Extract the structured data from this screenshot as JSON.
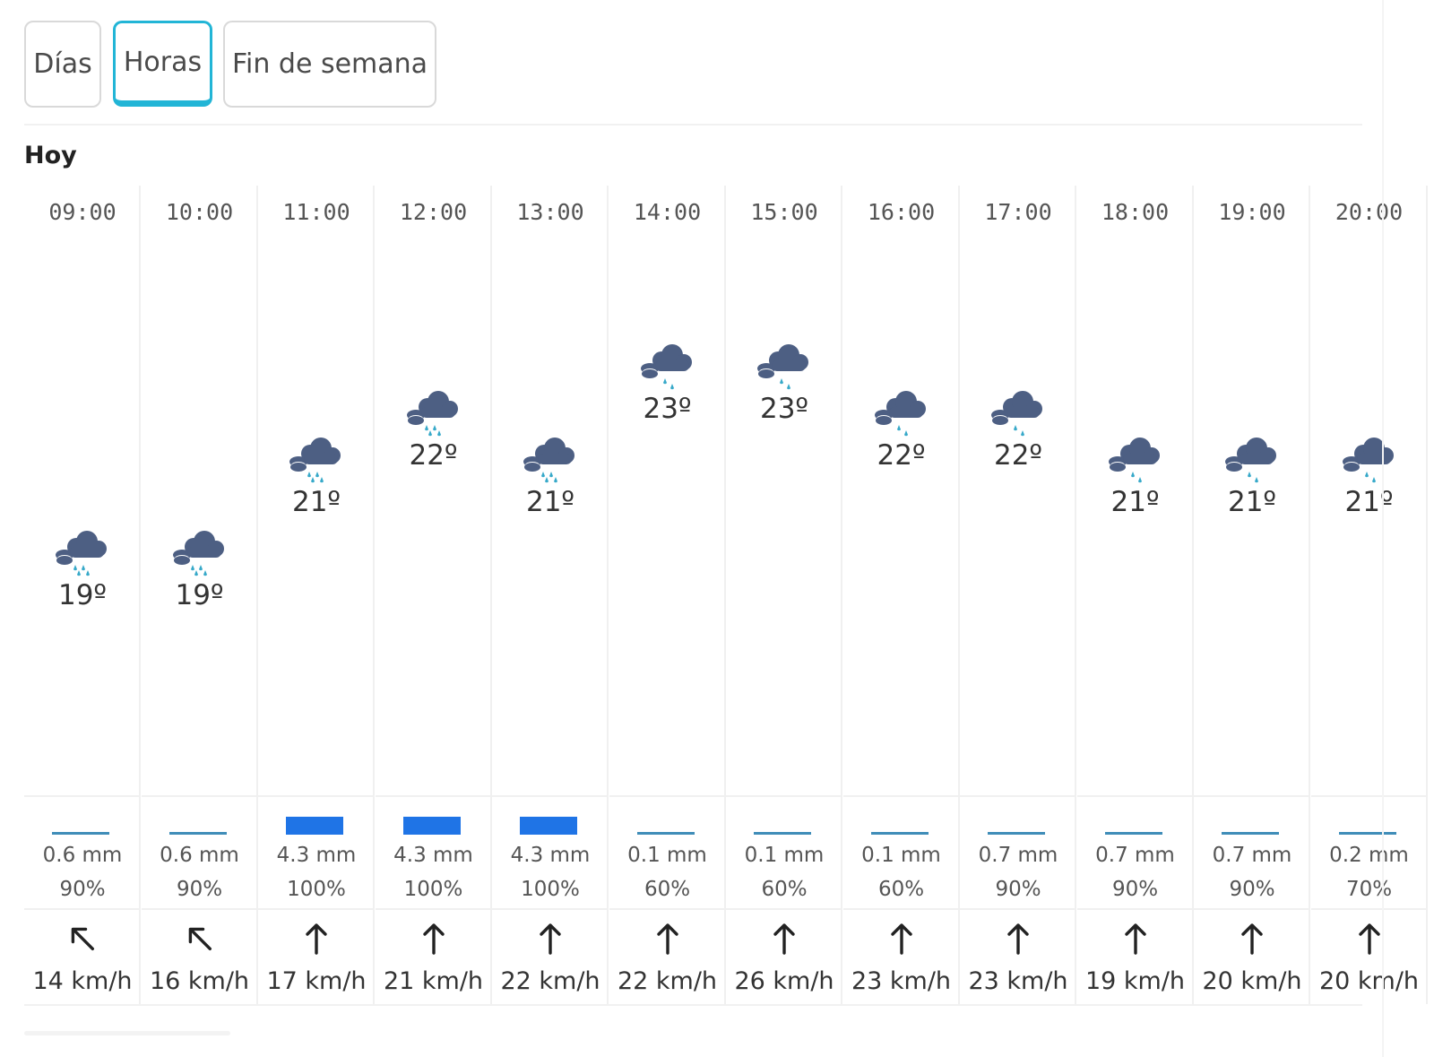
{
  "tabs": {
    "dias": "Días",
    "horas": "Horas",
    "fin_de_semana": "Fin de semana"
  },
  "day_label": "Hoy",
  "colors": {
    "accent_tab": "#22b5d6",
    "rain_bar": "#1f74e6",
    "icon_cloud": "#4d5f83",
    "icon_rain": "#37a9c9"
  },
  "hours": [
    {
      "time": "09:00",
      "icon": "cloud-rain-icon",
      "temp": "19º",
      "temp_c": 19,
      "rain_mm": "0.6 mm",
      "rain_value": 0.6,
      "rain_pct": "90%",
      "wind_dir": "north-west",
      "wind_rotation_deg": -45,
      "wind_speed": "14 km/h"
    },
    {
      "time": "10:00",
      "icon": "cloud-rain-icon",
      "temp": "19º",
      "temp_c": 19,
      "rain_mm": "0.6 mm",
      "rain_value": 0.6,
      "rain_pct": "90%",
      "wind_dir": "north-west",
      "wind_rotation_deg": -45,
      "wind_speed": "16 km/h"
    },
    {
      "time": "11:00",
      "icon": "cloud-rain-icon",
      "temp": "21º",
      "temp_c": 21,
      "rain_mm": "4.3 mm",
      "rain_value": 4.3,
      "rain_pct": "100%",
      "wind_dir": "north",
      "wind_rotation_deg": 0,
      "wind_speed": "17 km/h"
    },
    {
      "time": "12:00",
      "icon": "cloud-rain-icon",
      "temp": "22º",
      "temp_c": 22,
      "rain_mm": "4.3 mm",
      "rain_value": 4.3,
      "rain_pct": "100%",
      "wind_dir": "north",
      "wind_rotation_deg": 0,
      "wind_speed": "21 km/h"
    },
    {
      "time": "13:00",
      "icon": "cloud-rain-icon",
      "temp": "21º",
      "temp_c": 21,
      "rain_mm": "4.3 mm",
      "rain_value": 4.3,
      "rain_pct": "100%",
      "wind_dir": "north",
      "wind_rotation_deg": 0,
      "wind_speed": "22 km/h"
    },
    {
      "time": "14:00",
      "icon": "cloud-drizzle-icon",
      "temp": "23º",
      "temp_c": 23,
      "rain_mm": "0.1 mm",
      "rain_value": 0.1,
      "rain_pct": "60%",
      "wind_dir": "north",
      "wind_rotation_deg": 0,
      "wind_speed": "22 km/h"
    },
    {
      "time": "15:00",
      "icon": "cloud-drizzle-icon",
      "temp": "23º",
      "temp_c": 23,
      "rain_mm": "0.1 mm",
      "rain_value": 0.1,
      "rain_pct": "60%",
      "wind_dir": "north",
      "wind_rotation_deg": 0,
      "wind_speed": "26 km/h"
    },
    {
      "time": "16:00",
      "icon": "cloud-drizzle-icon",
      "temp": "22º",
      "temp_c": 22,
      "rain_mm": "0.1 mm",
      "rain_value": 0.1,
      "rain_pct": "60%",
      "wind_dir": "north",
      "wind_rotation_deg": 0,
      "wind_speed": "23 km/h"
    },
    {
      "time": "17:00",
      "icon": "cloud-drizzle-icon",
      "temp": "22º",
      "temp_c": 22,
      "rain_mm": "0.7 mm",
      "rain_value": 0.7,
      "rain_pct": "90%",
      "wind_dir": "north",
      "wind_rotation_deg": 0,
      "wind_speed": "23 km/h"
    },
    {
      "time": "18:00",
      "icon": "cloud-drizzle-icon",
      "temp": "21º",
      "temp_c": 21,
      "rain_mm": "0.7 mm",
      "rain_value": 0.7,
      "rain_pct": "90%",
      "wind_dir": "north",
      "wind_rotation_deg": 0,
      "wind_speed": "19 km/h"
    },
    {
      "time": "19:00",
      "icon": "cloud-drizzle-icon",
      "temp": "21º",
      "temp_c": 21,
      "rain_mm": "0.7 mm",
      "rain_value": 0.7,
      "rain_pct": "90%",
      "wind_dir": "north",
      "wind_rotation_deg": 0,
      "wind_speed": "20 km/h"
    },
    {
      "time": "20:00",
      "icon": "cloud-drizzle-icon",
      "temp": "21º",
      "temp_c": 21,
      "rain_mm": "0.2 mm",
      "rain_value": 0.2,
      "rain_pct": "70%",
      "wind_dir": "north",
      "wind_rotation_deg": 0,
      "wind_speed": "20 km/h"
    }
  ]
}
